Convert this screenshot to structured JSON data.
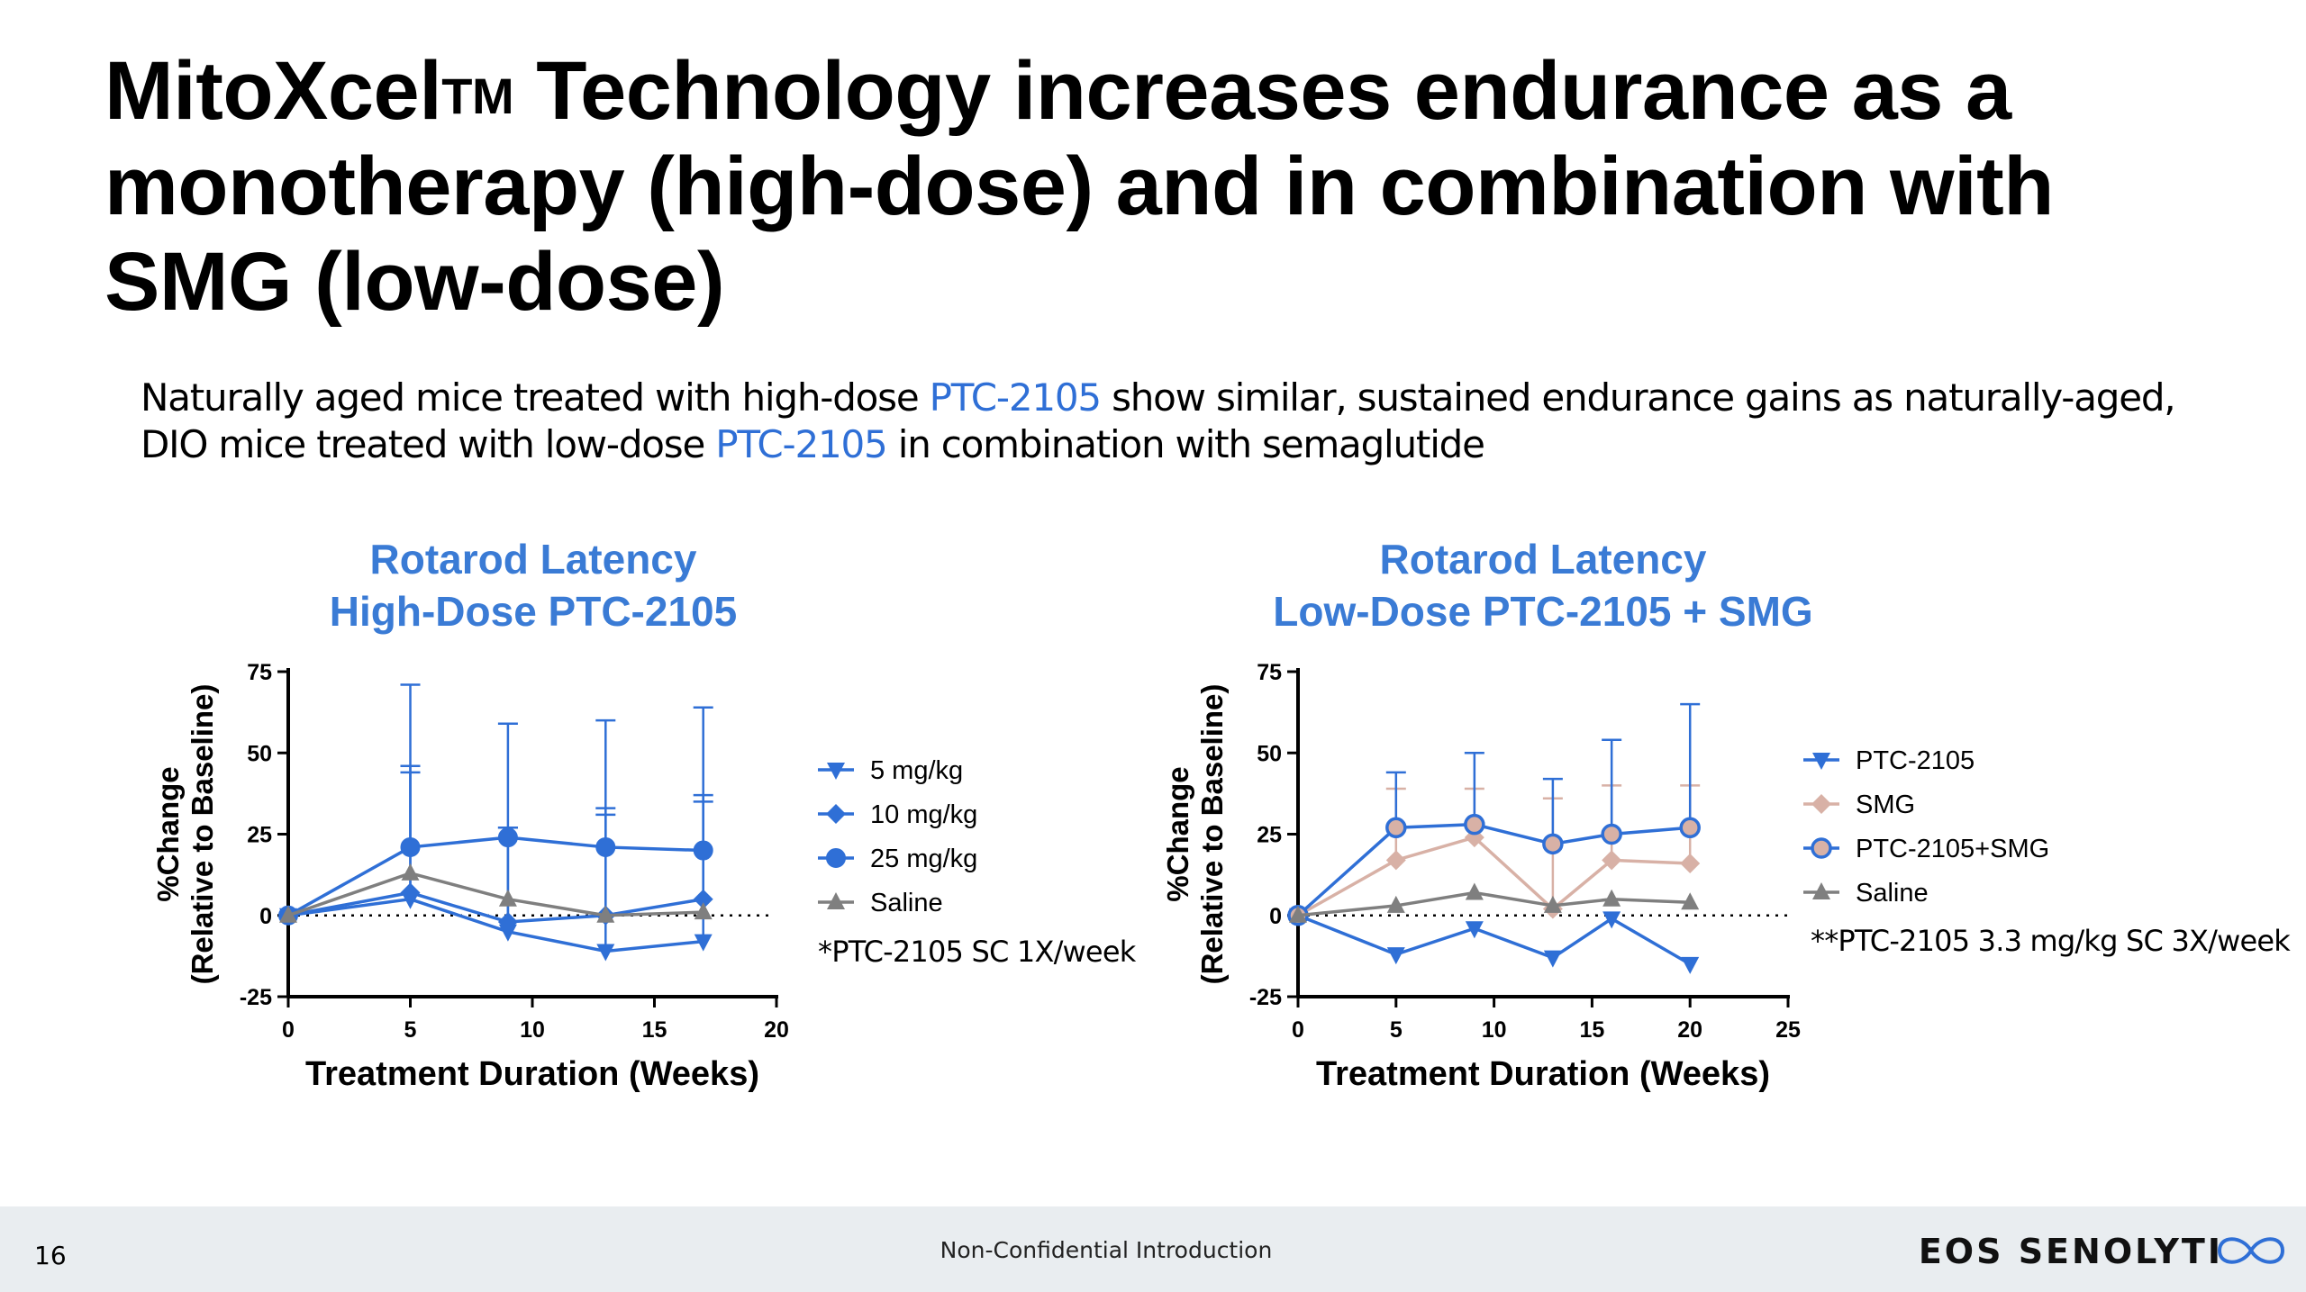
{
  "slide": {
    "title_main": "MitoXcel",
    "title_tm": "TM",
    "title_rest": " Technology increases endurance as a monotherapy (high-dose) and in combination with SMG (low-dose)",
    "subtitle_1": "Naturally aged mice treated with high-dose ",
    "subtitle_hl1": "PTC-2105",
    "subtitle_2": " show similar, sustained endurance gains as naturally-aged, DIO mice treated with low-dose ",
    "subtitle_hl2": "PTC-2105",
    "subtitle_3": " in combination with semaglutide",
    "page_number": "16",
    "footer_text": "Non-Confidential Introduction",
    "logo_text": "EOS SENOLYTI",
    "colors": {
      "accent_blue": "#2f6fd6",
      "title_blue": "#3a7bd5",
      "grey": "#7f7f7f",
      "tan": "#d8b1a6",
      "footer_bg": "#e9edf0"
    }
  },
  "chart_data": [
    {
      "type": "line",
      "title": [
        "Rotarod Latency",
        "High-Dose PTC-2105"
      ],
      "xlabel": "Treatment Duration (Weeks)",
      "ylabel": [
        "%Change",
        "(Relative to Baseline)"
      ],
      "xlim": [
        0,
        20
      ],
      "ylim": [
        -25,
        75
      ],
      "xticks": [
        0,
        5,
        10,
        15,
        20
      ],
      "yticks": [
        -25,
        0,
        25,
        50,
        75
      ],
      "baseline": "dotted line at y=0",
      "legend_position": "right",
      "note": "*PTC-2105 SC 1X/week",
      "series": [
        {
          "name": "5 mg/kg",
          "marker": "triangle-down",
          "color": "#2f6fd6",
          "x": [
            0,
            5,
            9,
            13,
            17
          ],
          "y": [
            0,
            5,
            -5,
            -11,
            -8
          ],
          "err_upper": [
            0,
            46,
            27,
            33,
            37
          ]
        },
        {
          "name": "10 mg/kg",
          "marker": "diamond",
          "color": "#2f6fd6",
          "x": [
            0,
            5,
            9,
            13,
            17
          ],
          "y": [
            0,
            7,
            -2,
            0,
            5
          ],
          "err_upper": [
            0,
            44,
            27,
            31,
            35
          ]
        },
        {
          "name": "25 mg/kg",
          "marker": "circle",
          "color": "#2f6fd6",
          "x": [
            0,
            5,
            9,
            13,
            17
          ],
          "y": [
            0,
            21,
            24,
            21,
            20
          ],
          "err_upper": [
            0,
            71,
            59,
            60,
            64
          ]
        },
        {
          "name": "Saline",
          "marker": "triangle-up",
          "color": "#7f7f7f",
          "x": [
            0,
            5,
            9,
            13,
            17
          ],
          "y": [
            0,
            13,
            5,
            0,
            1
          ],
          "err_upper": [
            0,
            0,
            0,
            0,
            0
          ]
        }
      ]
    },
    {
      "type": "line",
      "title": [
        "Rotarod Latency",
        "Low-Dose PTC-2105 + SMG"
      ],
      "xlabel": "Treatment Duration (Weeks)",
      "ylabel": [
        "%Change",
        "(Relative to Baseline)"
      ],
      "xlim": [
        0,
        25
      ],
      "ylim": [
        -25,
        75
      ],
      "xticks": [
        0,
        5,
        10,
        15,
        20,
        25
      ],
      "yticks": [
        -25,
        0,
        25,
        50,
        75
      ],
      "baseline": "dotted line at y=0",
      "legend_position": "right",
      "note": "**PTC-2105 3.3 mg/kg SC 3X/week",
      "series": [
        {
          "name": "PTC-2105",
          "marker": "triangle-down",
          "color": "#2f6fd6",
          "x": [
            0,
            5,
            9,
            13,
            16,
            20
          ],
          "y": [
            0,
            -12,
            -4,
            -13,
            -1,
            -15
          ],
          "err_upper": [
            0,
            0,
            0,
            0,
            0,
            0
          ]
        },
        {
          "name": "SMG",
          "marker": "diamond",
          "color": "#d8b1a6",
          "x": [
            0,
            5,
            9,
            13,
            16,
            20
          ],
          "y": [
            0,
            17,
            24,
            2,
            17,
            16
          ],
          "err_upper": [
            0,
            39,
            39,
            36,
            40,
            40
          ]
        },
        {
          "name": "PTC-2105+SMG",
          "marker": "circle",
          "color": "#2f6fd6",
          "x": [
            0,
            5,
            9,
            13,
            16,
            20
          ],
          "y": [
            0,
            27,
            28,
            22,
            25,
            27
          ],
          "err_upper": [
            0,
            44,
            50,
            42,
            54,
            65
          ]
        },
        {
          "name": "Saline",
          "marker": "triangle-up",
          "color": "#7f7f7f",
          "x": [
            0,
            5,
            9,
            13,
            16,
            20
          ],
          "y": [
            0,
            3,
            7,
            3,
            5,
            4
          ],
          "err_upper": [
            0,
            0,
            0,
            0,
            0,
            0
          ]
        }
      ]
    }
  ]
}
